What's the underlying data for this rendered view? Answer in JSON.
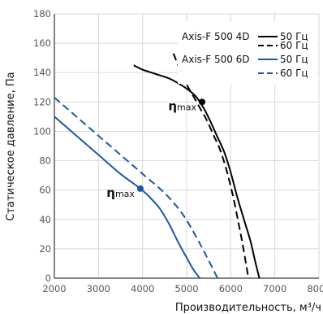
{
  "chart_data": {
    "type": "line",
    "title": "",
    "xlabel": "Производительность, м³/ч",
    "ylabel": "Статическое давление, Па",
    "xlim": [
      2000,
      8000
    ],
    "ylim": [
      0,
      180
    ],
    "xticks": [
      2000,
      3000,
      4000,
      5000,
      6000,
      7000,
      8000
    ],
    "yticks": [
      0,
      20,
      40,
      60,
      80,
      100,
      120,
      140,
      160,
      180
    ],
    "grid": true,
    "legend_position": "top-right",
    "legend": {
      "groups": [
        {
          "model": "Axis-F 500 4D",
          "entries": [
            "50 Гц",
            "60 Гц"
          ]
        },
        {
          "model": "Axis-F 500 6D",
          "entries": [
            "50 Гц",
            "60 Гц"
          ]
        }
      ]
    },
    "series": [
      {
        "model": "Axis-F 500 4D",
        "frequency": "50 Гц",
        "color": "#000000",
        "dash": "solid",
        "x": [
          3800,
          4000,
          4300,
          4600,
          4850,
          5050,
          5200,
          5300,
          5420,
          5550,
          5700,
          5850,
          6000,
          6150,
          6300,
          6450,
          6550,
          6650
        ],
        "y": [
          145,
          142,
          139,
          136,
          132,
          128,
          124,
          120,
          114,
          106,
          96,
          86,
          72,
          55,
          40,
          25,
          12,
          0
        ]
      },
      {
        "model": "Axis-F 500 4D",
        "frequency": "60 Гц",
        "color": "#000000",
        "dash": "dashed",
        "x": [
          4700,
          4850,
          5000,
          5150,
          5300,
          5450,
          5600,
          5750,
          5900,
          6050,
          6200,
          6300,
          6400
        ],
        "y": [
          153,
          142,
          132,
          124,
          116,
          108,
          98,
          88,
          74,
          56,
          34,
          18,
          0
        ]
      },
      {
        "model": "Axis-F 500 6D",
        "frequency": "50 Гц",
        "color": "#1f56a3",
        "dash": "solid",
        "x": [
          2000,
          2500,
          3000,
          3500,
          3950,
          4200,
          4400,
          4600,
          4800,
          5000,
          5150,
          5300
        ],
        "y": [
          110,
          97,
          84,
          71,
          61,
          54,
          47,
          37,
          25,
          14,
          6,
          0
        ]
      },
      {
        "model": "Axis-F 500 6D",
        "frequency": "60 Гц",
        "color": "#1f56a3",
        "dash": "dashed",
        "x": [
          2000,
          2500,
          3000,
          3500,
          4000,
          4500,
          4900,
          5200,
          5450,
          5700
        ],
        "y": [
          123,
          110,
          97,
          84,
          71,
          58,
          44,
          29,
          15,
          0
        ]
      }
    ],
    "annotations": [
      {
        "text": "ηmax",
        "x": 5350,
        "y": 120,
        "color": "#000000"
      },
      {
        "text": "ηmax",
        "x": 3950,
        "y": 61,
        "color": "#1f56a3"
      }
    ]
  }
}
